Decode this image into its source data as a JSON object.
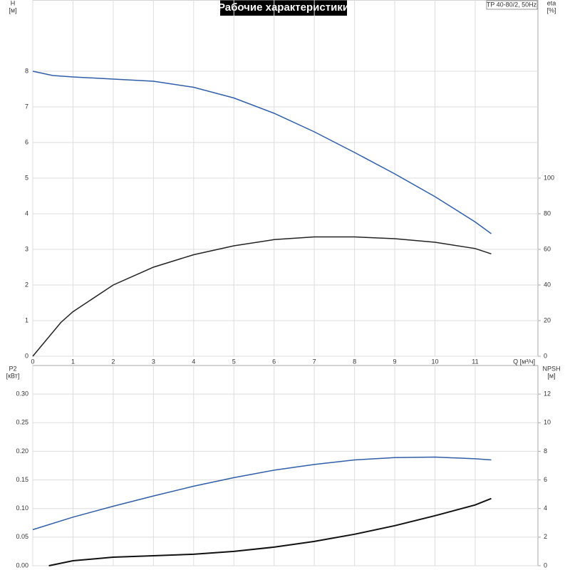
{
  "title": "Рабочие характеристики",
  "model": "TP 40-80/2, 50Hz",
  "chart_data": [
    {
      "type": "line",
      "ylabel": "H",
      "yunit": "[м]",
      "y2label": "eta",
      "y2unit": "[%]",
      "xlabel": "Q [м³/ч]",
      "xlim": [
        0,
        12.56
      ],
      "xticks": [
        0,
        1,
        2,
        3,
        4,
        5,
        6,
        7,
        8,
        9,
        10,
        11
      ],
      "xtick_labels": true,
      "ylim": [
        0,
        10
      ],
      "yticks": [
        0,
        1,
        2,
        3,
        4,
        5,
        6,
        7,
        8
      ],
      "y2lim": [
        0,
        200
      ],
      "y2ticks": [
        0,
        20,
        40,
        60,
        80,
        100
      ],
      "grid": true,
      "series": [
        {
          "color": "#2f5ea8",
          "x": [
            0,
            0.5,
            1,
            2,
            3,
            4,
            5,
            6,
            7,
            8,
            9,
            10,
            11,
            11.4
          ],
          "values": [
            8.0,
            7.88,
            7.84,
            7.78,
            7.72,
            7.55,
            7.25,
            6.82,
            6.3,
            5.72,
            5.12,
            4.48,
            3.77,
            3.44
          ]
        },
        {
          "color": "#222222",
          "axis": "y2",
          "x": [
            0,
            0.7,
            1,
            2,
            3,
            4,
            5,
            6,
            7,
            8,
            9,
            10,
            11,
            11.4
          ],
          "values": [
            0,
            19,
            25,
            40,
            50,
            57,
            62,
            65.5,
            67,
            67,
            66,
            64,
            60.5,
            57.5
          ]
        }
      ]
    },
    {
      "type": "line",
      "ylabel": "P2",
      "yunit": "[кВт]",
      "y2label": "NPSH",
      "y2unit": "[м]",
      "xlim": [
        0,
        12.56
      ],
      "xticks": [
        0,
        1,
        2,
        3,
        4,
        5,
        6,
        7,
        8,
        9,
        10,
        11
      ],
      "xtick_labels": false,
      "ylim": [
        0,
        0.35
      ],
      "yticks": [
        {
          "value": 0,
          "label": "0.00"
        },
        0.05,
        {
          "value": 0.1,
          "label": "0.10"
        },
        0.15,
        {
          "value": 0.2,
          "label": "0.20"
        },
        0.25,
        {
          "value": 0.3,
          "label": "0.30"
        }
      ],
      "y2lim": [
        0,
        14
      ],
      "y2ticks": [
        0,
        2,
        4,
        6,
        8,
        10,
        12
      ],
      "grid": true,
      "series": [
        {
          "color": "#2f5ea8",
          "x": [
            0,
            1,
            2,
            3,
            4,
            5,
            6,
            7,
            8,
            9,
            10,
            11,
            11.4
          ],
          "values": [
            0.063,
            0.085,
            0.104,
            0.122,
            0.139,
            0.154,
            0.167,
            0.177,
            0.185,
            0.189,
            0.19,
            0.187,
            0.185
          ]
        },
        {
          "color": "#111111",
          "axis": "y2",
          "width": 2,
          "x": [
            0.4,
            1,
            2,
            3,
            4,
            5,
            6,
            7,
            8,
            9,
            10,
            11,
            11.4
          ],
          "values": [
            0,
            0.35,
            0.6,
            0.7,
            0.8,
            1.0,
            1.3,
            1.7,
            2.2,
            2.8,
            3.5,
            4.25,
            4.7
          ]
        }
      ]
    }
  ]
}
